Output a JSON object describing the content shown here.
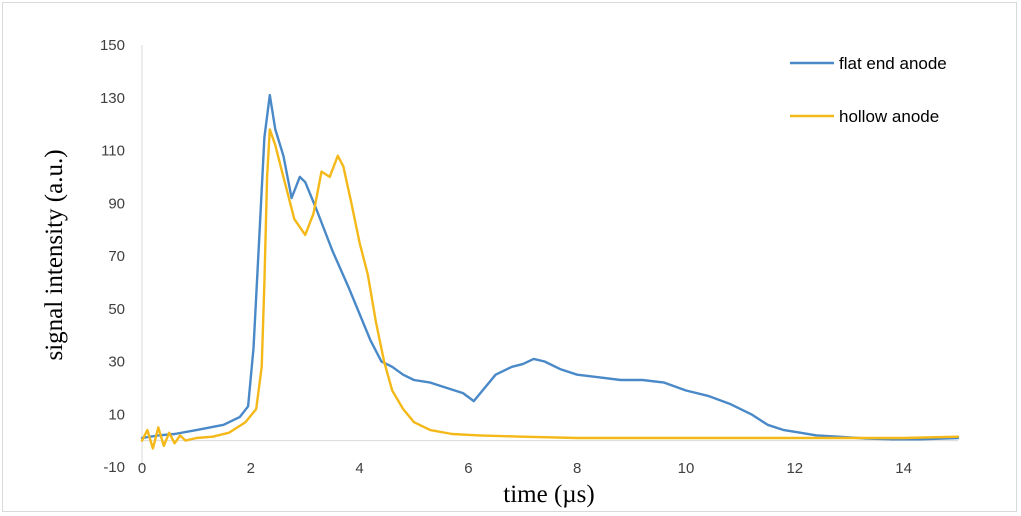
{
  "chart_data": {
    "type": "line",
    "title": "",
    "xlabel": "time (µs)",
    "ylabel": "signal intensity (a.u.)",
    "xlim": [
      0,
      15
    ],
    "ylim": [
      -10,
      150
    ],
    "xticks": [
      "0",
      "2",
      "4",
      "6",
      "8",
      "10",
      "12",
      "14"
    ],
    "yticks": [
      "-10",
      "10",
      "30",
      "50",
      "70",
      "90",
      "110",
      "130",
      "150"
    ],
    "grid": false,
    "legend_position": "top-right",
    "series": [
      {
        "name": "flat end anode",
        "color": "#4a89c8",
        "points": [
          [
            0,
            1
          ],
          [
            0.3,
            2
          ],
          [
            0.6,
            2.5
          ],
          [
            1.0,
            4
          ],
          [
            1.5,
            6
          ],
          [
            1.8,
            9
          ],
          [
            1.95,
            13
          ],
          [
            2.05,
            35
          ],
          [
            2.15,
            75
          ],
          [
            2.25,
            115
          ],
          [
            2.35,
            131
          ],
          [
            2.45,
            118
          ],
          [
            2.6,
            108
          ],
          [
            2.75,
            92
          ],
          [
            2.9,
            100
          ],
          [
            3.0,
            98
          ],
          [
            3.2,
            88
          ],
          [
            3.5,
            72
          ],
          [
            3.8,
            58
          ],
          [
            4.0,
            48
          ],
          [
            4.2,
            38
          ],
          [
            4.4,
            30
          ],
          [
            4.6,
            28
          ],
          [
            4.8,
            25
          ],
          [
            5.0,
            23
          ],
          [
            5.3,
            22
          ],
          [
            5.6,
            20
          ],
          [
            5.9,
            18
          ],
          [
            6.1,
            15
          ],
          [
            6.3,
            20
          ],
          [
            6.5,
            25
          ],
          [
            6.8,
            28
          ],
          [
            7.0,
            29
          ],
          [
            7.2,
            31
          ],
          [
            7.4,
            30
          ],
          [
            7.7,
            27
          ],
          [
            8.0,
            25
          ],
          [
            8.4,
            24
          ],
          [
            8.8,
            23
          ],
          [
            9.2,
            23
          ],
          [
            9.6,
            22
          ],
          [
            10.0,
            19
          ],
          [
            10.4,
            17
          ],
          [
            10.8,
            14
          ],
          [
            11.2,
            10
          ],
          [
            11.5,
            6
          ],
          [
            11.8,
            4
          ],
          [
            12.1,
            3
          ],
          [
            12.4,
            2
          ],
          [
            12.8,
            1.5
          ],
          [
            13.3,
            0.8
          ],
          [
            13.8,
            0.5
          ],
          [
            14.3,
            0.5
          ],
          [
            15.0,
            1
          ]
        ]
      },
      {
        "name": "hollow anode",
        "color": "#f4b918",
        "points": [
          [
            0,
            0
          ],
          [
            0.1,
            4
          ],
          [
            0.2,
            -3
          ],
          [
            0.3,
            5
          ],
          [
            0.4,
            -2
          ],
          [
            0.5,
            3
          ],
          [
            0.6,
            -1
          ],
          [
            0.7,
            2
          ],
          [
            0.8,
            0
          ],
          [
            1.0,
            1
          ],
          [
            1.3,
            1.5
          ],
          [
            1.6,
            3
          ],
          [
            1.9,
            7
          ],
          [
            2.1,
            12
          ],
          [
            2.2,
            28
          ],
          [
            2.25,
            60
          ],
          [
            2.3,
            100
          ],
          [
            2.35,
            118
          ],
          [
            2.45,
            112
          ],
          [
            2.6,
            100
          ],
          [
            2.8,
            84
          ],
          [
            3.0,
            78
          ],
          [
            3.15,
            86
          ],
          [
            3.3,
            102
          ],
          [
            3.45,
            100
          ],
          [
            3.6,
            108
          ],
          [
            3.7,
            104
          ],
          [
            3.85,
            90
          ],
          [
            4.0,
            75
          ],
          [
            4.15,
            63
          ],
          [
            4.3,
            45
          ],
          [
            4.45,
            30
          ],
          [
            4.6,
            19
          ],
          [
            4.8,
            12
          ],
          [
            5.0,
            7
          ],
          [
            5.3,
            4
          ],
          [
            5.7,
            2.5
          ],
          [
            6.2,
            2
          ],
          [
            7.0,
            1.5
          ],
          [
            8.0,
            1
          ],
          [
            9.0,
            1
          ],
          [
            10.0,
            1
          ],
          [
            11.0,
            1
          ],
          [
            12.0,
            1
          ],
          [
            13.0,
            1
          ],
          [
            14.0,
            1
          ],
          [
            15.0,
            1.5
          ]
        ]
      }
    ]
  }
}
